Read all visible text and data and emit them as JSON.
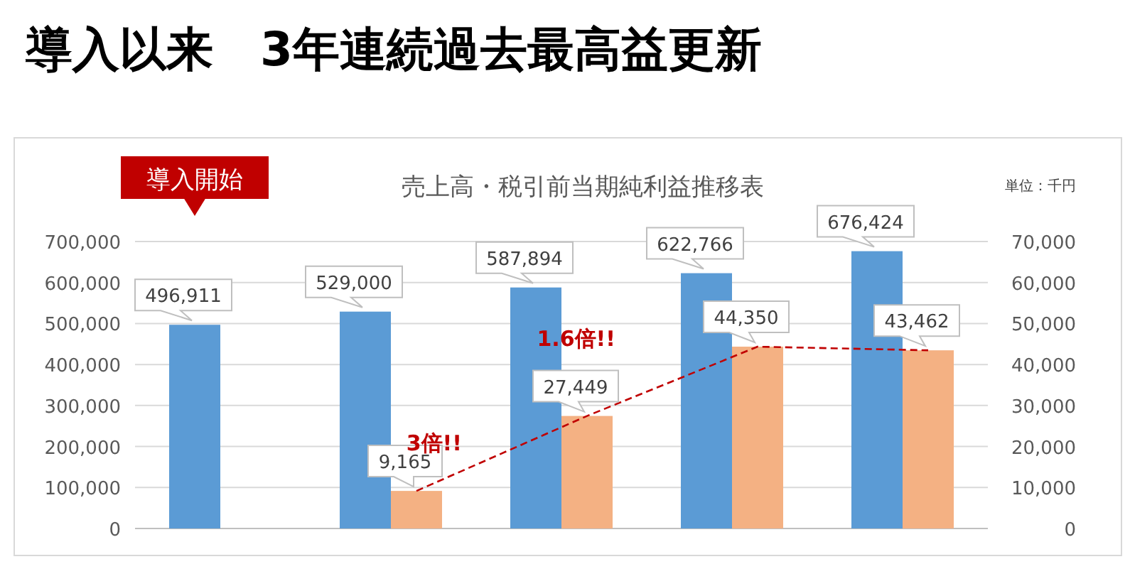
{
  "chart_data": {
    "type": "bar",
    "title": "導入以来　3年連続過去最高益更新",
    "subtitle": "売上高・税引前当期純利益推移表",
    "annotations": [
      "単位：千円",
      "導入開始",
      "3倍!!",
      "1.6倍!!"
    ],
    "categories": [
      null,
      null,
      null,
      null,
      null
    ],
    "series": [
      {
        "color": "#5b9bd5",
        "values": [
          496911,
          529000,
          587894,
          622766,
          676424
        ],
        "value_labels": [
          "496,911",
          "529,000",
          "587,894",
          "622,766",
          "676,424"
        ]
      },
      {
        "color": "#f4b183",
        "axis": "y2",
        "values": [
          null,
          9165,
          27449,
          44350,
          43462
        ],
        "value_labels": [
          null,
          "9,165",
          "27,449",
          "44,350",
          "43,462"
        ]
      },
      {
        "type": "line",
        "color": "#c00000",
        "axis": "y2",
        "line_style": "dashed",
        "values": [
          null,
          9165,
          27449,
          44350,
          43462
        ]
      }
    ],
    "ylim": [
      0,
      700000
    ],
    "yticks": [
      {
        "value": 0,
        "label": "0"
      },
      {
        "value": 100000,
        "label": "100,000"
      },
      {
        "value": 200000,
        "label": "200,000"
      },
      {
        "value": 300000,
        "label": "300,000"
      },
      {
        "value": 400000,
        "label": "400,000"
      },
      {
        "value": 500000,
        "label": "500,000"
      },
      {
        "value": 600000,
        "label": "600,000"
      },
      {
        "value": 700000,
        "label": "700,000"
      }
    ],
    "y2lim": [
      0,
      70000
    ],
    "y2ticks": [
      {
        "value": 0,
        "label": "0"
      },
      {
        "value": 10000,
        "label": "10,000"
      },
      {
        "value": 20000,
        "label": "20,000"
      },
      {
        "value": 30000,
        "label": "30,000"
      },
      {
        "value": 40000,
        "label": "40,000"
      },
      {
        "value": 50000,
        "label": "50,000"
      },
      {
        "value": 60000,
        "label": "60,000"
      },
      {
        "value": 70000,
        "label": "70,000"
      }
    ],
    "grid": "y"
  }
}
